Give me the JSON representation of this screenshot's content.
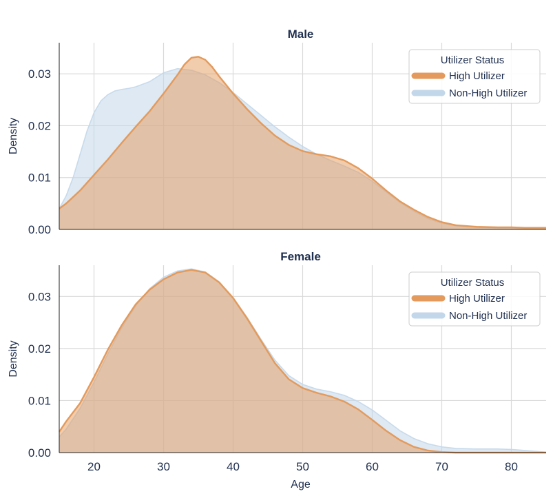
{
  "chart_data": [
    {
      "type": "area",
      "title": "Male",
      "xlabel": "",
      "ylabel": "Density",
      "xlim": [
        15,
        85
      ],
      "ylim": [
        0,
        0.036
      ],
      "xticks": [
        20,
        30,
        40,
        50,
        60,
        70,
        80
      ],
      "xtick_labels": [
        "",
        "",
        "",
        "",
        "",
        "",
        ""
      ],
      "yticks": [
        0,
        0.01,
        0.02,
        0.03
      ],
      "ytick_labels": [
        "0.00",
        "0.01",
        "0.02",
        "0.03"
      ],
      "grid": true,
      "legend": {
        "title": "Utilizer Status",
        "position": "top-right"
      },
      "series": [
        {
          "name": "Non-High Utilizer",
          "color": "#c3d7ea",
          "x": [
            15,
            16,
            17,
            18,
            19,
            20,
            21,
            22,
            23,
            24,
            25,
            26,
            28,
            30,
            32,
            34,
            36,
            38,
            40,
            42,
            44,
            46,
            48,
            50,
            52,
            54,
            56,
            58,
            60,
            62,
            64,
            66,
            68,
            70,
            72,
            75,
            78,
            80,
            82,
            85
          ],
          "y": [
            0.004,
            0.0065,
            0.01,
            0.0145,
            0.019,
            0.0225,
            0.0248,
            0.026,
            0.0267,
            0.027,
            0.0272,
            0.0275,
            0.0285,
            0.0302,
            0.031,
            0.0307,
            0.0298,
            0.0283,
            0.0264,
            0.0242,
            0.022,
            0.0198,
            0.0178,
            0.016,
            0.0145,
            0.0133,
            0.0122,
            0.011,
            0.0093,
            0.0072,
            0.0052,
            0.0035,
            0.0021,
            0.0012,
            0.0007,
            0.0004,
            0.0003,
            0.0003,
            0.0002,
            0.0002
          ]
        },
        {
          "name": "High Utilizer",
          "color": "#e39a5c",
          "x": [
            15,
            16,
            18,
            20,
            22,
            24,
            26,
            28,
            30,
            31,
            32,
            33,
            34,
            35,
            36,
            37,
            38,
            40,
            42,
            44,
            46,
            48,
            50,
            52,
            54,
            56,
            58,
            60,
            62,
            64,
            66,
            68,
            70,
            72,
            75,
            78,
            80,
            82,
            85
          ],
          "y": [
            0.004,
            0.005,
            0.0075,
            0.0105,
            0.0135,
            0.0167,
            0.0198,
            0.0228,
            0.0262,
            0.028,
            0.0298,
            0.0318,
            0.0331,
            0.0333,
            0.0327,
            0.0313,
            0.0295,
            0.0262,
            0.0232,
            0.0205,
            0.0181,
            0.0163,
            0.0151,
            0.0145,
            0.0141,
            0.0133,
            0.0118,
            0.0098,
            0.0075,
            0.0054,
            0.0038,
            0.0024,
            0.0014,
            0.0008,
            0.0005,
            0.0004,
            0.0004,
            0.0003,
            0.0003
          ]
        }
      ]
    },
    {
      "type": "area",
      "title": "Female",
      "xlabel": "Age",
      "ylabel": "Density",
      "xlim": [
        15,
        85
      ],
      "ylim": [
        0,
        0.036
      ],
      "xticks": [
        20,
        30,
        40,
        50,
        60,
        70,
        80
      ],
      "xtick_labels": [
        "20",
        "30",
        "40",
        "50",
        "60",
        "70",
        "80"
      ],
      "yticks": [
        0,
        0.01,
        0.02,
        0.03
      ],
      "ytick_labels": [
        "0.00",
        "0.01",
        "0.02",
        "0.03"
      ],
      "grid": true,
      "legend": {
        "title": "Utilizer Status",
        "position": "top-right"
      },
      "series": [
        {
          "name": "Non-High Utilizer",
          "color": "#c3d7ea",
          "x": [
            15,
            16,
            18,
            20,
            22,
            24,
            26,
            28,
            30,
            32,
            34,
            36,
            38,
            40,
            42,
            44,
            46,
            48,
            50,
            52,
            54,
            56,
            58,
            60,
            62,
            64,
            66,
            68,
            70,
            72,
            75,
            78,
            80,
            82,
            85
          ],
          "y": [
            0.003,
            0.0045,
            0.0085,
            0.0135,
            0.019,
            0.024,
            0.0282,
            0.0315,
            0.0337,
            0.0349,
            0.0353,
            0.0347,
            0.0328,
            0.0298,
            0.026,
            0.0218,
            0.0178,
            0.0148,
            0.0131,
            0.0122,
            0.0117,
            0.011,
            0.0098,
            0.0082,
            0.0062,
            0.0042,
            0.0027,
            0.0017,
            0.0011,
            0.0008,
            0.0007,
            0.0007,
            0.0006,
            0.0004,
            0.0001
          ]
        },
        {
          "name": "High Utilizer",
          "color": "#e39a5c",
          "x": [
            15,
            16,
            18,
            20,
            22,
            24,
            26,
            28,
            30,
            32,
            34,
            36,
            38,
            40,
            42,
            44,
            46,
            48,
            50,
            52,
            54,
            56,
            58,
            60,
            62,
            64,
            66,
            68,
            70,
            72,
            75,
            78,
            80,
            85
          ],
          "y": [
            0.004,
            0.006,
            0.0095,
            0.0145,
            0.0198,
            0.0245,
            0.0285,
            0.0313,
            0.0333,
            0.0346,
            0.0351,
            0.0346,
            0.0327,
            0.0297,
            0.0258,
            0.0215,
            0.0172,
            0.0141,
            0.0124,
            0.0115,
            0.0108,
            0.0098,
            0.0083,
            0.0063,
            0.0042,
            0.0024,
            0.0011,
            0.0004,
            0.0001,
            0,
            0,
            0,
            0,
            0
          ]
        }
      ]
    }
  ]
}
